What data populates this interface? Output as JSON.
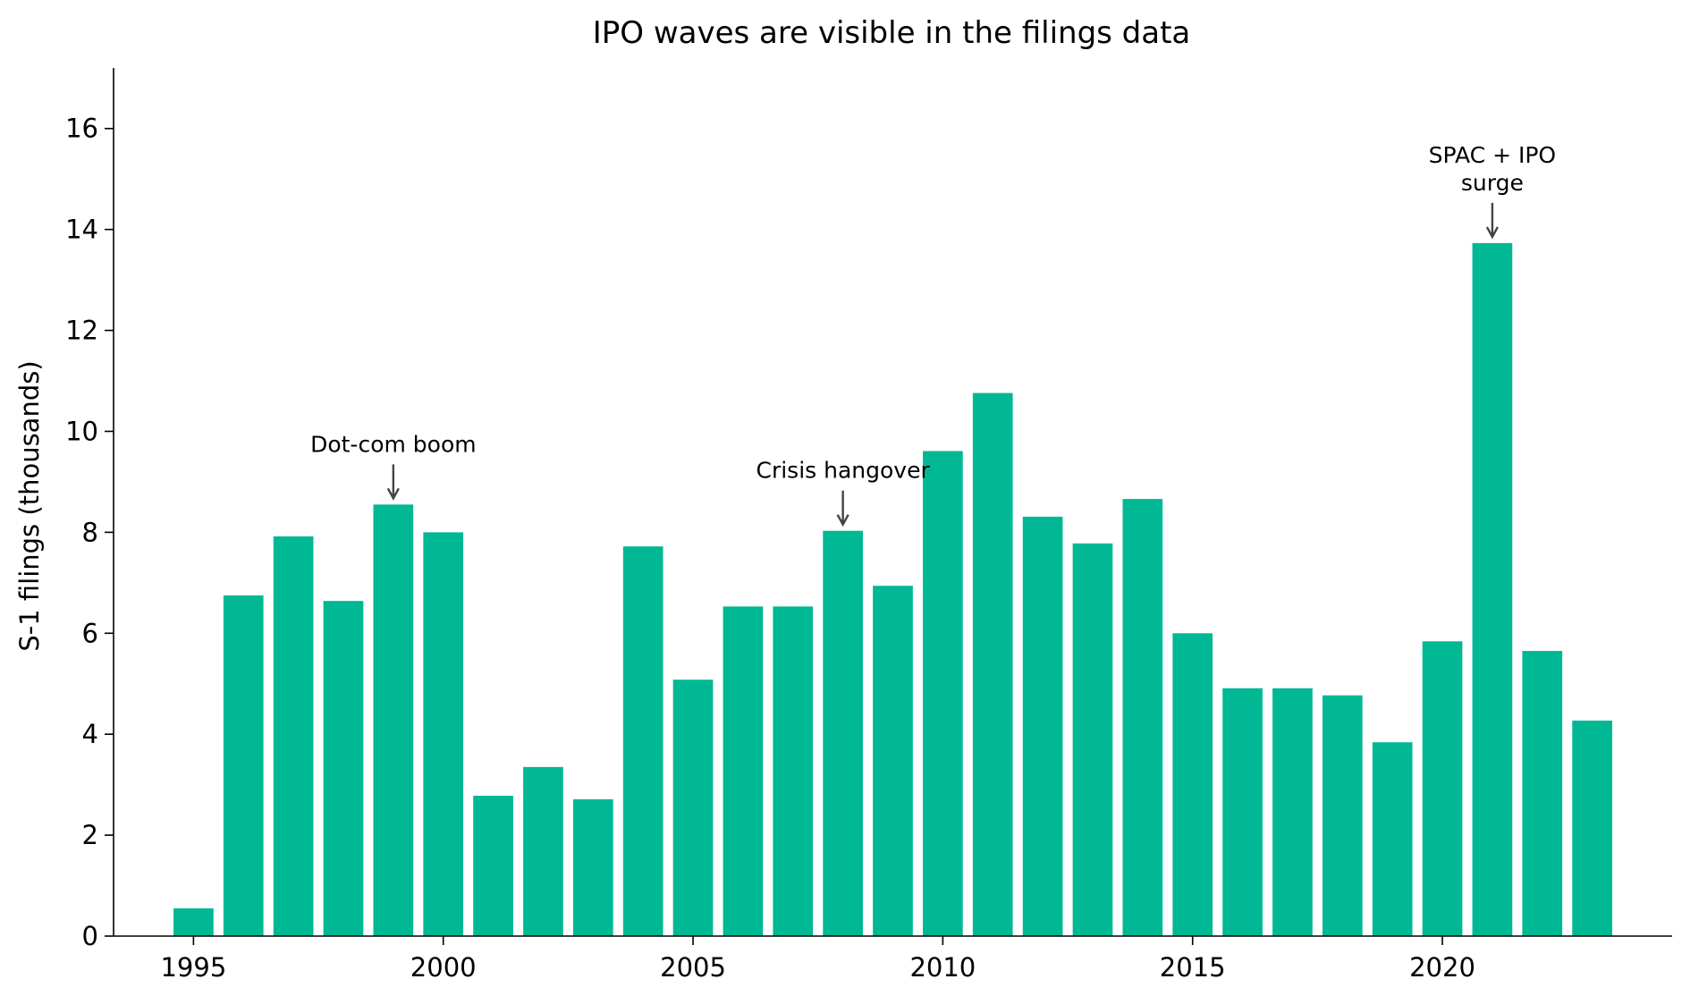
{
  "chart_data": {
    "type": "bar",
    "title": "IPO waves are visible in the filings data",
    "xlabel": "",
    "ylabel": "S-1 filings (thousands)",
    "bar_color": "#00b894",
    "annotation_color": "#444444",
    "grid": false,
    "x": [
      1995,
      1996,
      1997,
      1998,
      1999,
      2000,
      2001,
      2002,
      2003,
      2004,
      2005,
      2006,
      2007,
      2008,
      2009,
      2010,
      2011,
      2012,
      2013,
      2014,
      2015,
      2016,
      2017,
      2018,
      2019,
      2020,
      2021,
      2022,
      2023
    ],
    "values": [
      0.55,
      6.75,
      7.92,
      6.64,
      8.55,
      8.0,
      2.78,
      3.35,
      2.71,
      7.72,
      5.08,
      6.53,
      6.53,
      8.03,
      6.94,
      9.61,
      10.76,
      8.31,
      7.78,
      8.66,
      6.0,
      4.91,
      4.91,
      4.77,
      3.84,
      5.84,
      13.73,
      5.65,
      4.27
    ],
    "xlim": [
      1993.4,
      2024.6
    ],
    "ylim": [
      0,
      17.2
    ],
    "xticks": [
      "1995",
      "2000",
      "2005",
      "2010",
      "2015",
      "2020"
    ],
    "yticks": [
      "0",
      "2",
      "4",
      "6",
      "8",
      "10",
      "12",
      "14",
      "16"
    ],
    "annotations": [
      {
        "x": 1999,
        "target": 8.55,
        "lines": [
          "Dot-com boom"
        ]
      },
      {
        "x": 2008,
        "target": 8.03,
        "lines": [
          "Crisis hangover"
        ]
      },
      {
        "x": 2021,
        "target": 13.73,
        "lines": [
          "SPAC + IPO",
          "surge"
        ]
      }
    ]
  }
}
